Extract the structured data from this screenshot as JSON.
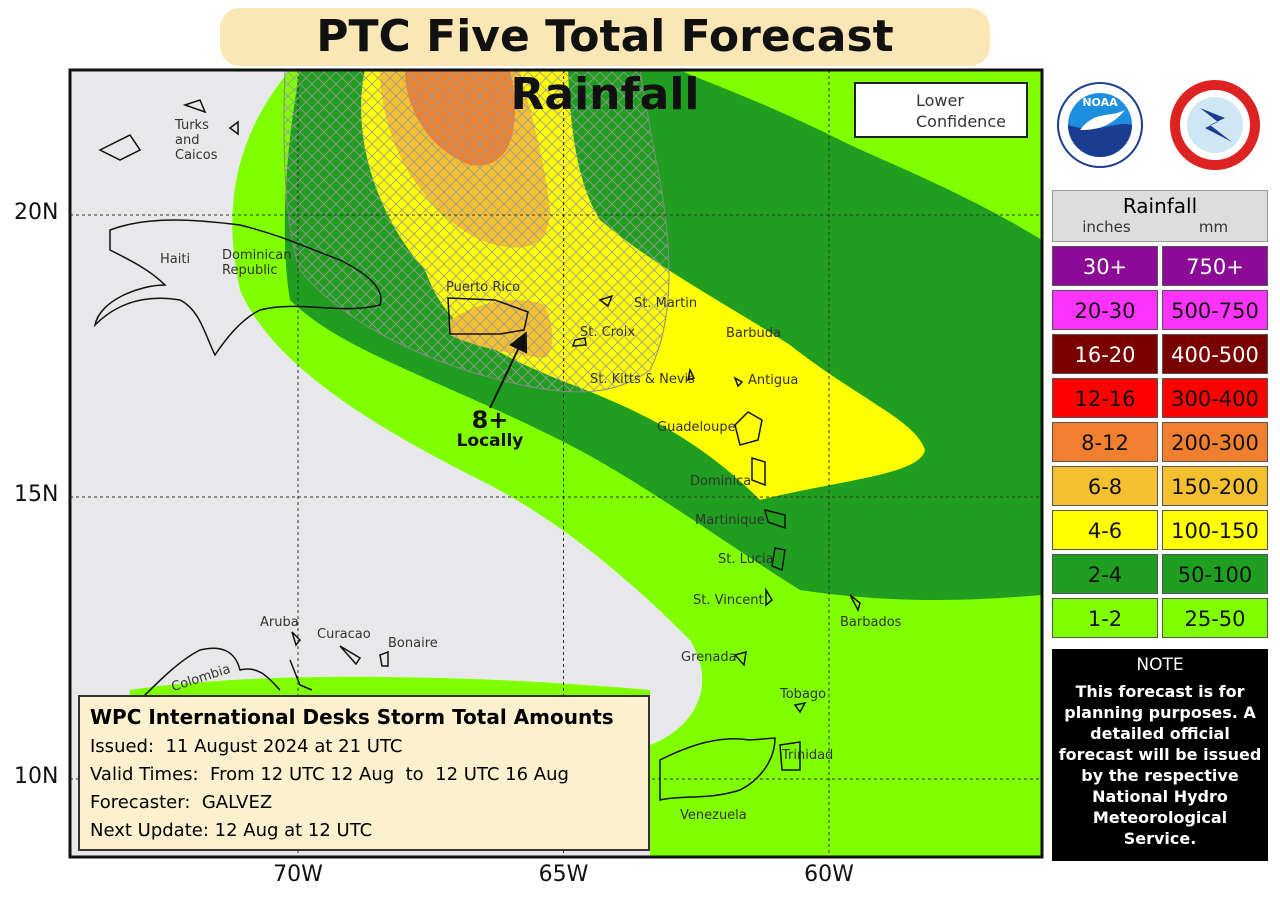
{
  "title": "PTC Five Total Forecast Rainfall",
  "grid": {
    "lon": [
      {
        "value": -70,
        "label": "70W"
      },
      {
        "value": -65,
        "label": "65W"
      },
      {
        "value": -60,
        "label": "60W"
      }
    ],
    "lat": [
      {
        "value": 20,
        "label": "20N"
      },
      {
        "value": 15,
        "label": "15N"
      },
      {
        "value": 10,
        "label": "10N"
      }
    ]
  },
  "places": [
    "Turks and Caicos",
    "Haiti",
    "Dominican Republic",
    "Puerto Rico",
    "St. Martin",
    "St. Croix",
    "Barbuda",
    "St. Kitts & Nevis",
    "Antigua",
    "Guadeloupe",
    "Dominica",
    "Martinique",
    "St. Lucia",
    "St. Vincent",
    "Barbados",
    "Grenada",
    "Tobago",
    "Trinidad",
    "Venezuela",
    "Aruba",
    "Curacao",
    "Bonaire",
    "Colombia"
  ],
  "map_legend": "Lower Confidence",
  "annotation": [
    "8+",
    "Locally"
  ],
  "logos": [
    "NOAA"
  ],
  "rainfall_legend": {
    "title": "Rainfall",
    "units": [
      "inches",
      "mm"
    ],
    "rows": [
      {
        "inches": "30+",
        "mm": "750+",
        "color": "#8b0a96"
      },
      {
        "inches": "20-30",
        "mm": "500-750",
        "color": "#ff33ff"
      },
      {
        "inches": "16-20",
        "mm": "400-500",
        "color": "#7a0000"
      },
      {
        "inches": "12-16",
        "mm": "300-400",
        "color": "#ff0000"
      },
      {
        "inches": "8-12",
        "mm": "200-300",
        "color": "#f08030"
      },
      {
        "inches": "6-8",
        "mm": "150-200",
        "color": "#f5c030"
      },
      {
        "inches": "4-6",
        "mm": "100-150",
        "color": "#ffff00"
      },
      {
        "inches": "2-4",
        "mm": "50-100",
        "color": "#1f9e1f"
      },
      {
        "inches": "1-2",
        "mm": "25-50",
        "color": "#80ff00"
      }
    ]
  },
  "info": {
    "title": "WPC International Desks Storm Total Amounts",
    "lines": [
      "Issued:  11 August 2024 at 21 UTC",
      "Valid Times:  From 12 UTC 12 Aug  to  12 UTC 16 Aug",
      "Forecaster:  GALVEZ",
      "Next Update: 12 Aug at 12 UTC"
    ]
  },
  "note": {
    "title": "NOTE",
    "text": "This forecast is for planning purposes. A detailed official forecast will be issued by the respective National Hydro Meteorological Service."
  }
}
